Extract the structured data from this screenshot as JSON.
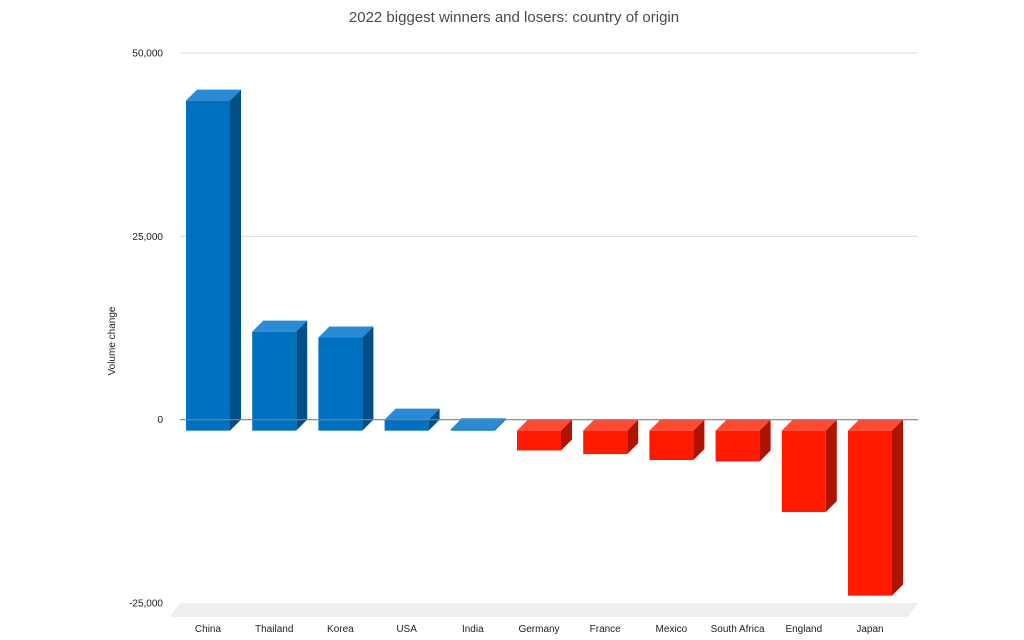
{
  "chart_data": {
    "type": "bar",
    "title": "2022 biggest winners and losers: country of origin",
    "xlabel": "",
    "ylabel": "Volume change",
    "categories": [
      "China",
      "Thailand",
      "Korea",
      "USA",
      "India",
      "Germany",
      "France",
      "Mexico",
      "South Africa",
      "England",
      "Japan"
    ],
    "values": [
      45000,
      13500,
      12700,
      1500,
      200,
      -2700,
      -3200,
      -4000,
      -4200,
      -11100,
      -22500
    ],
    "ylim": [
      -25000,
      50000
    ],
    "yticks": [
      -25000,
      0,
      25000,
      50000
    ],
    "ytick_labels": [
      "-25,000",
      "0",
      "25,000",
      "50,000"
    ],
    "grid": true,
    "legend": "none",
    "style": "3d",
    "colors": {
      "positive": "#0070c0",
      "positive_top": "#2a8ad4",
      "positive_side": "#004f88",
      "negative": "#ff1a00",
      "negative_top": "#ff4a33",
      "negative_side": "#b01200",
      "grid": "#d9d9d9",
      "zero_line": "#808080",
      "floor": "#eeeeee"
    }
  }
}
